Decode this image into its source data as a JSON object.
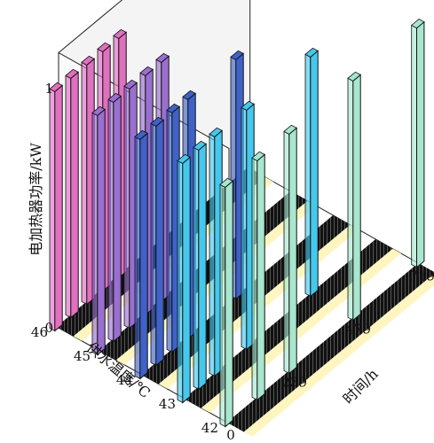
{
  "chart_data": {
    "type": "bar3d",
    "title": "",
    "x_axis": {
      "label": "时间/h",
      "ticks": [
        "0",
        "239",
        "479",
        "719"
      ],
      "range": [
        0,
        719
      ]
    },
    "y_axis": {
      "label": "供水温度/℃",
      "ticks": [
        "42",
        "43",
        "44",
        "45",
        "46"
      ],
      "range": [
        42,
        46
      ]
    },
    "z_axis": {
      "label": "电加热器功率/kW",
      "ticks": [
        "0",
        "1"
      ],
      "range": [
        0,
        1
      ]
    },
    "series": [
      {
        "temperature": 46,
        "color": "#e070c0",
        "x": [
          0,
          60,
          120,
          180,
          240
        ],
        "values": [
          1,
          1,
          1,
          1,
          1
        ]
      },
      {
        "temperature": 45,
        "color": "#9a6fd0",
        "x": [
          0,
          60,
          120,
          180,
          240
        ],
        "values": [
          1,
          1,
          1,
          1,
          1
        ]
      },
      {
        "temperature": 44,
        "color": "#3f62c8",
        "x": [
          0,
          60,
          120,
          180,
          360
        ],
        "values": [
          1,
          1,
          1,
          1,
          1
        ]
      },
      {
        "temperature": 43,
        "color": "#45c8ee",
        "x": [
          0,
          60,
          120,
          240,
          480
        ],
        "values": [
          1,
          1,
          1,
          1,
          1
        ]
      },
      {
        "temperature": 42,
        "color": "#a8e6cf",
        "x": [
          0,
          120,
          240,
          480,
          719
        ],
        "values": [
          1,
          1,
          1,
          1,
          1
        ]
      }
    ],
    "grid": false
  }
}
